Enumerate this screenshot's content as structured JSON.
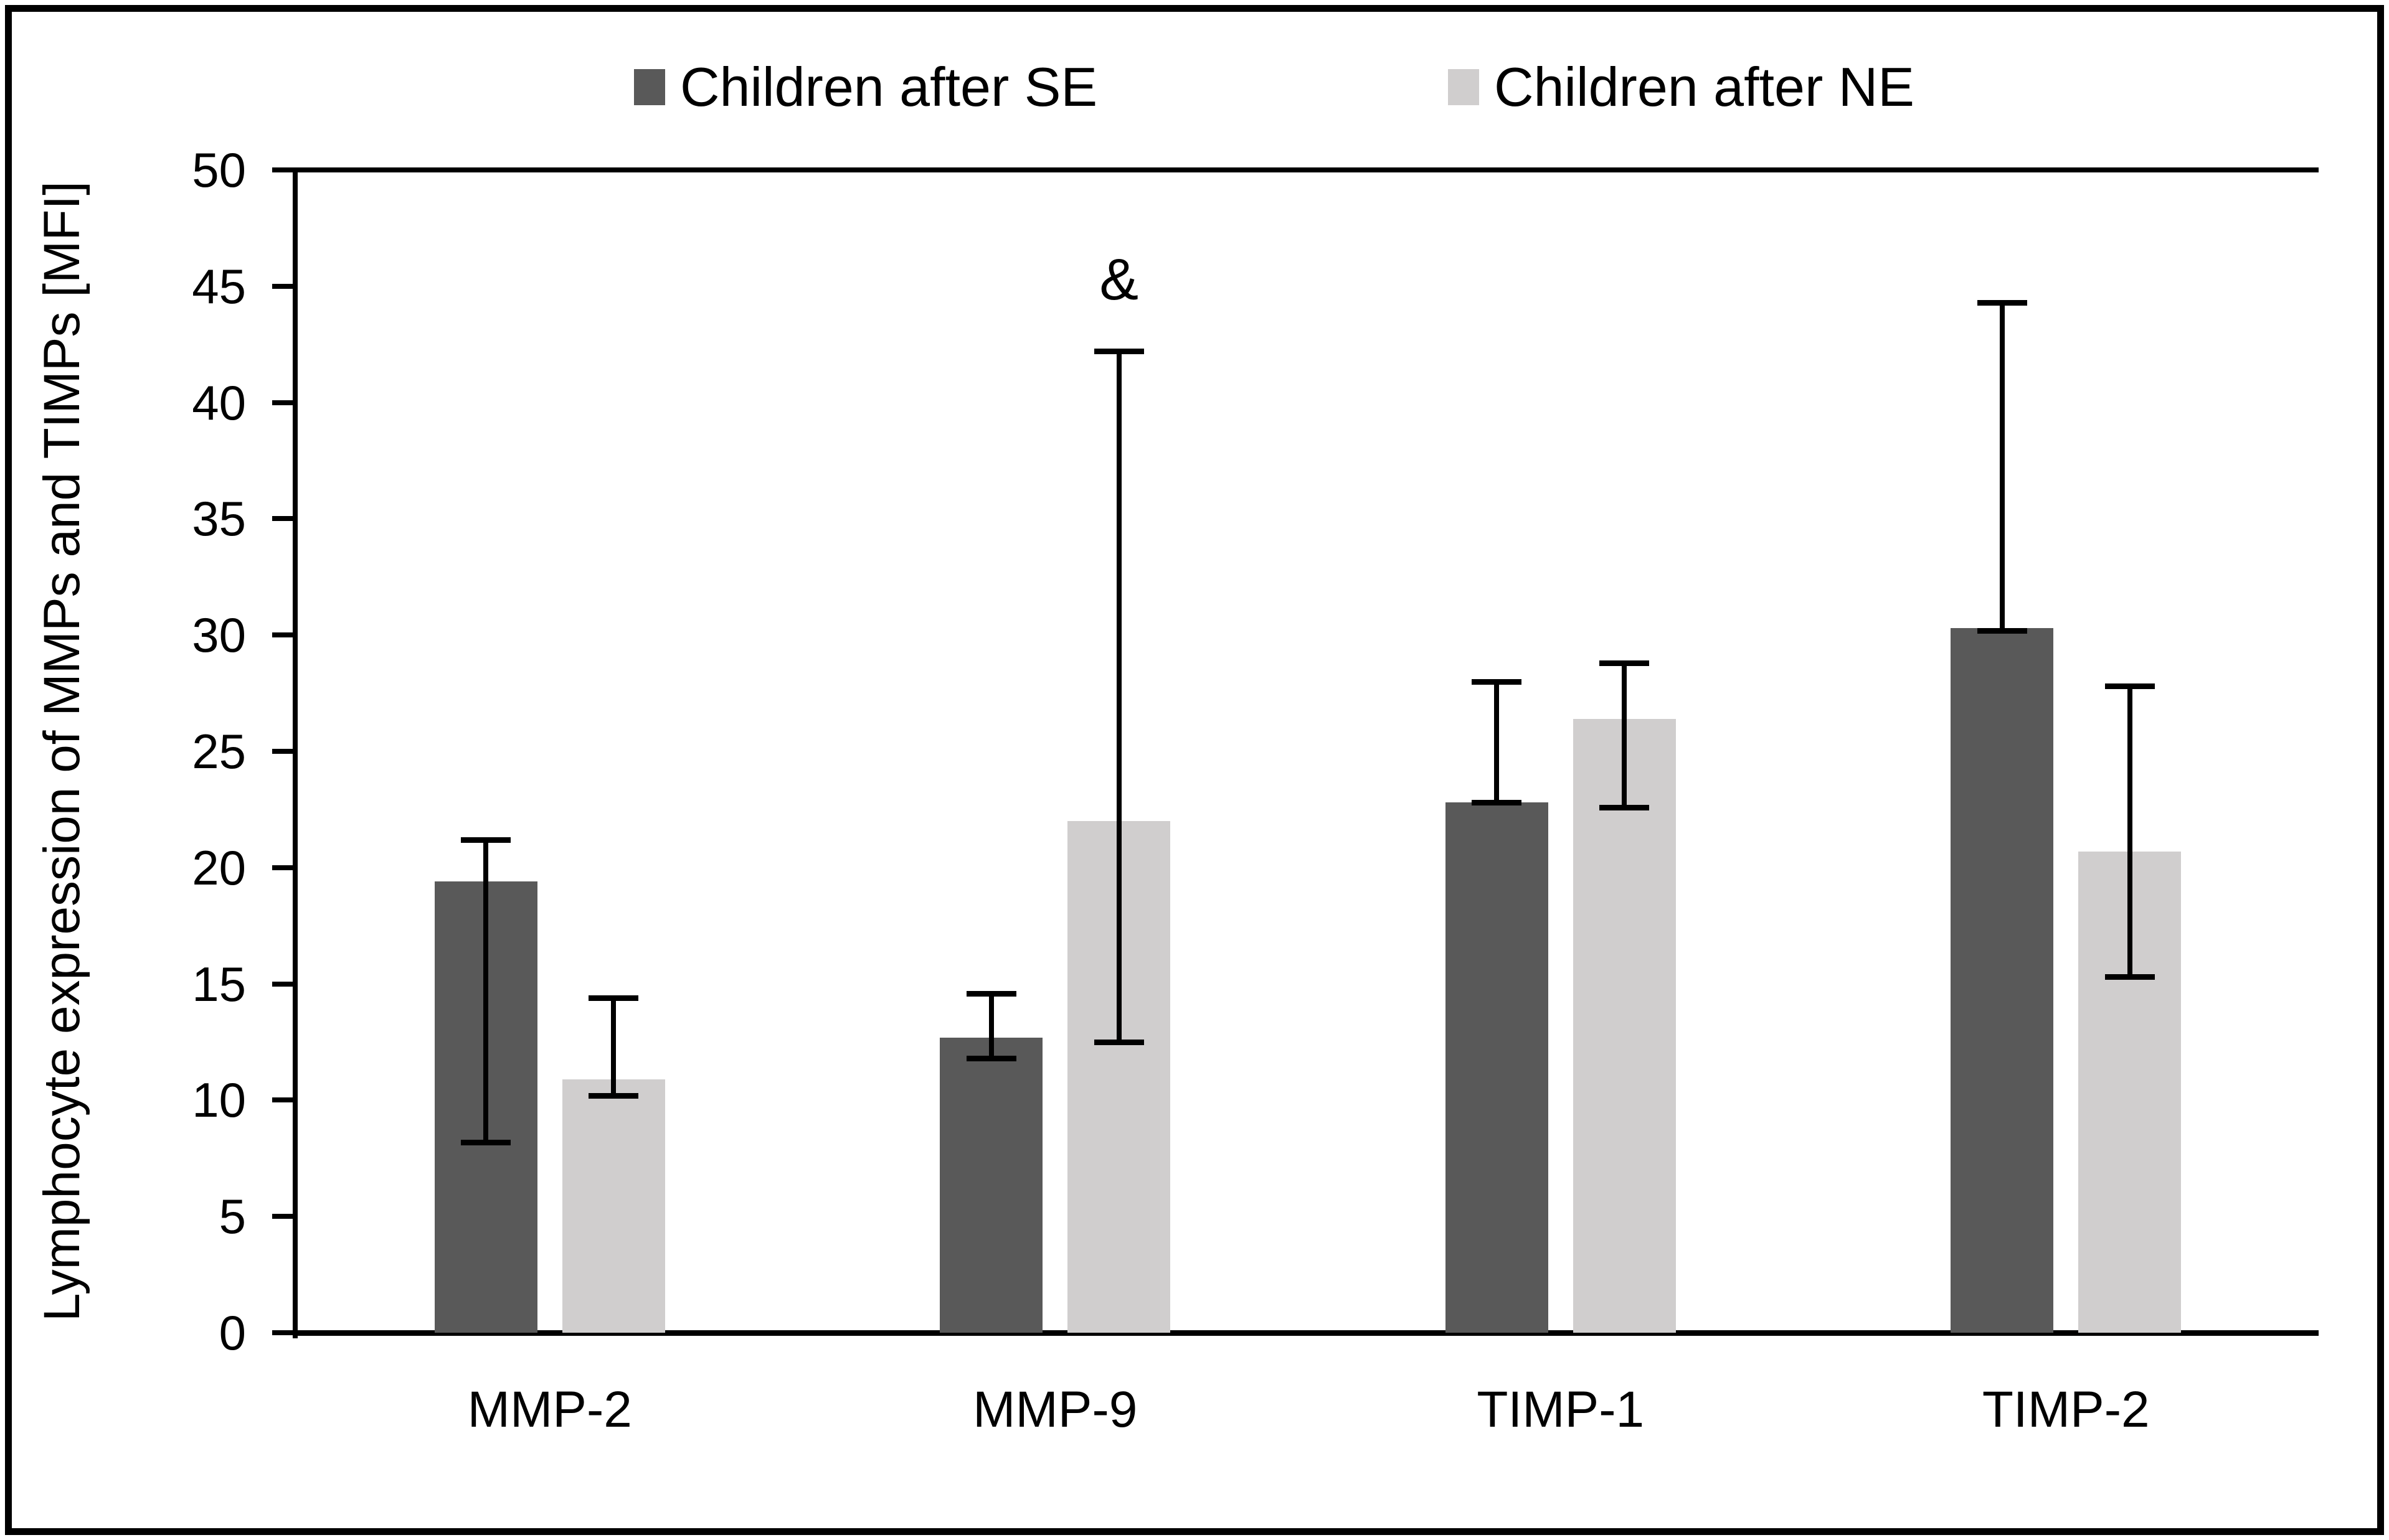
{
  "legend": {
    "items": [
      {
        "label": "Children after SE",
        "color": "#595959"
      },
      {
        "label": "Children after NE",
        "color": "#d0cece"
      }
    ]
  },
  "y_axis": {
    "label": "Lymphocyte expression of MMPs and TIMPs [MFI]",
    "ticks": [
      0,
      5,
      10,
      15,
      20,
      25,
      30,
      35,
      40,
      45,
      50
    ]
  },
  "chart_data": {
    "type": "bar",
    "title": "",
    "xlabel": "",
    "ylabel": "Lymphocyte expression of MMPs and TIMPs [MFI]",
    "ylim": [
      0,
      50
    ],
    "ytick_step": 5,
    "grid": false,
    "legend_position": "top",
    "categories": [
      "MMP-2",
      "MMP-9",
      "TIMP-1",
      "TIMP-2"
    ],
    "series": [
      {
        "name": "Children after SE",
        "color": "#595959",
        "values": [
          19.4,
          12.7,
          22.8,
          30.3
        ],
        "error_low": [
          8.2,
          11.8,
          22.8,
          30.2
        ],
        "error_high": [
          21.2,
          14.6,
          28.0,
          44.3
        ]
      },
      {
        "name": "Children after NE",
        "color": "#d0cece",
        "values": [
          10.9,
          22.0,
          26.4,
          20.7
        ],
        "error_low": [
          10.2,
          12.5,
          22.6,
          15.3
        ],
        "error_high": [
          14.4,
          42.2,
          28.8,
          27.8
        ]
      }
    ],
    "annotations": [
      {
        "text": "&",
        "category": "MMP-9",
        "series": "Children after NE",
        "y": 45.3
      }
    ]
  }
}
